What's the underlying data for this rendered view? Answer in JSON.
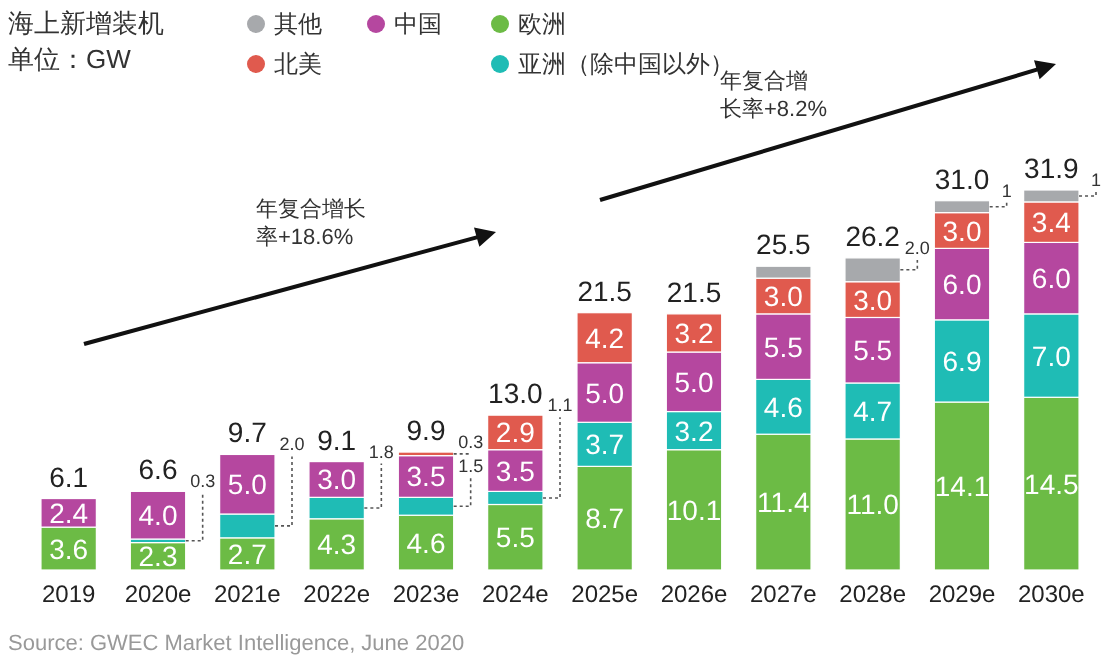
{
  "chart_data": {
    "type": "bar",
    "stacked": true,
    "title": "海上新增装机",
    "subtitle": "单位：GW",
    "categories": [
      "2019",
      "2020e",
      "2021e",
      "2022e",
      "2023e",
      "2024e",
      "2025e",
      "2026e",
      "2027e",
      "2028e",
      "2029e",
      "2030e"
    ],
    "series": [
      {
        "name": "欧洲",
        "color": "#6cbb45",
        "values": [
          3.6,
          2.3,
          2.7,
          4.3,
          4.6,
          5.5,
          8.7,
          10.1,
          11.4,
          11.0,
          14.1,
          14.5
        ],
        "value_labels": [
          "3.6",
          "2.3",
          "2.7",
          "4.3",
          "4.6",
          "5.5",
          "8.7",
          "10.1",
          "11.4",
          "11.0",
          "14.1",
          "14.5"
        ]
      },
      {
        "name": "亚洲（除中国以外）",
        "color": "#1fbcb5",
        "values": [
          null,
          0.3,
          2.0,
          1.8,
          1.5,
          1.1,
          3.7,
          3.2,
          4.6,
          4.7,
          6.9,
          7.0
        ],
        "value_labels": [
          null,
          "0.3",
          "2.0",
          "1.8",
          "1.5",
          "1.1",
          "3.7",
          "3.2",
          "4.6",
          "4.7",
          "6.9",
          "7.0"
        ]
      },
      {
        "name": "中国",
        "color": "#b5479f",
        "values": [
          2.4,
          4.0,
          5.0,
          3.0,
          3.5,
          3.5,
          5.0,
          5.0,
          5.5,
          5.5,
          6.0,
          6.0
        ],
        "value_labels": [
          "2.4",
          "4.0",
          "5.0",
          "3.0",
          "3.5",
          "3.5",
          "5.0",
          "5.0",
          "5.5",
          "5.5",
          "6.0",
          "6.0"
        ]
      },
      {
        "name": "北美",
        "color": "#e05a4e",
        "values": [
          null,
          null,
          null,
          null,
          0.3,
          2.9,
          4.2,
          3.2,
          3.0,
          3.0,
          3.0,
          3.4
        ],
        "value_labels": [
          null,
          null,
          null,
          null,
          "0.3",
          "2.9",
          "4.2",
          "3.2",
          "3.0",
          "3.0",
          "3.0",
          "3.4"
        ]
      },
      {
        "name": "其他",
        "color": "#a7a9ac",
        "values": [
          null,
          null,
          null,
          null,
          null,
          null,
          null,
          null,
          1.0,
          2.0,
          1,
          1
        ],
        "value_labels": [
          null,
          null,
          null,
          null,
          null,
          null,
          null,
          null,
          null,
          "2.0",
          "1",
          "1"
        ]
      }
    ],
    "totals": [
      "6.1",
      "6.6",
      "9.7",
      "9.1",
      "9.9",
      "13.0",
      "21.5",
      "21.5",
      "25.5",
      "26.2",
      "31.0",
      "31.9"
    ],
    "legend": "top left",
    "annotations": [
      "年复合增长率+18.6%",
      "年复合增长率+8.2%",
      "Source: GWEC Market Intelligence, June 2020"
    ]
  }
}
